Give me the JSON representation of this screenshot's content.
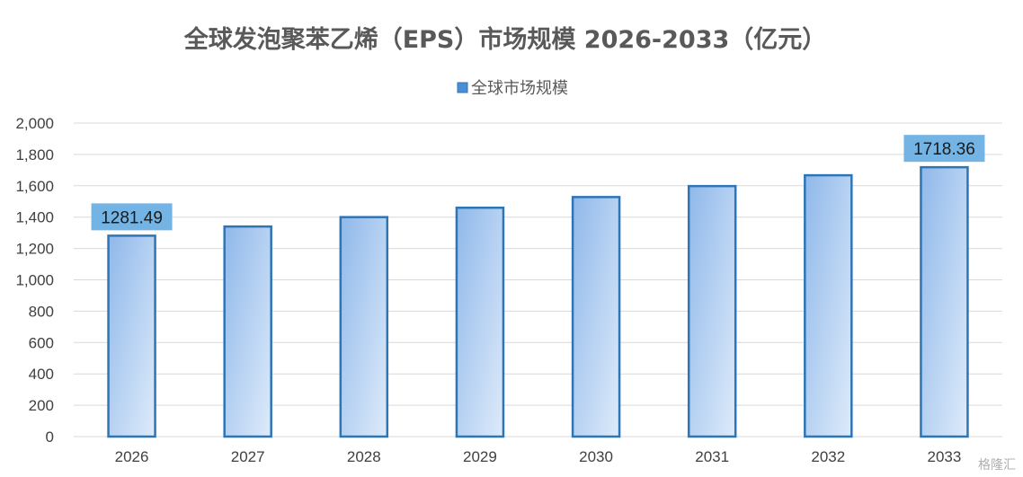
{
  "chart_data": {
    "type": "bar",
    "title": "全球发泡聚苯乙烯（EPS）市场规模 2026-2033（亿元）",
    "xlabel": "",
    "ylabel": "",
    "categories": [
      "2026",
      "2027",
      "2028",
      "2029",
      "2030",
      "2031",
      "2032",
      "2033"
    ],
    "series": [
      {
        "name": "全球市场规模",
        "values": [
          1281.49,
          1340,
          1400,
          1460,
          1528,
          1598,
          1667,
          1718.36
        ]
      }
    ],
    "data_labels": [
      {
        "category": "2026",
        "text": "1281.49"
      },
      {
        "category": "2033",
        "text": "1718.36"
      }
    ],
    "ylim": [
      0,
      2000
    ],
    "yticks": [
      0,
      200,
      400,
      600,
      800,
      1000,
      1200,
      1400,
      1600,
      1800,
      2000
    ],
    "ytick_labels": [
      "0",
      "200",
      "400",
      "600",
      "800",
      "1,000",
      "1,200",
      "1,400",
      "1,600",
      "1,800",
      "2,000"
    ],
    "grid": true,
    "legend_position": "top",
    "colors": {
      "bar_top": "#8fb8ea",
      "bar_bottom": "#deebfa",
      "bar_stroke": "#2e75b6",
      "label_bg": "#74b4e4",
      "legend_marker": "#4a8fd6"
    }
  },
  "watermark": "格隆汇"
}
